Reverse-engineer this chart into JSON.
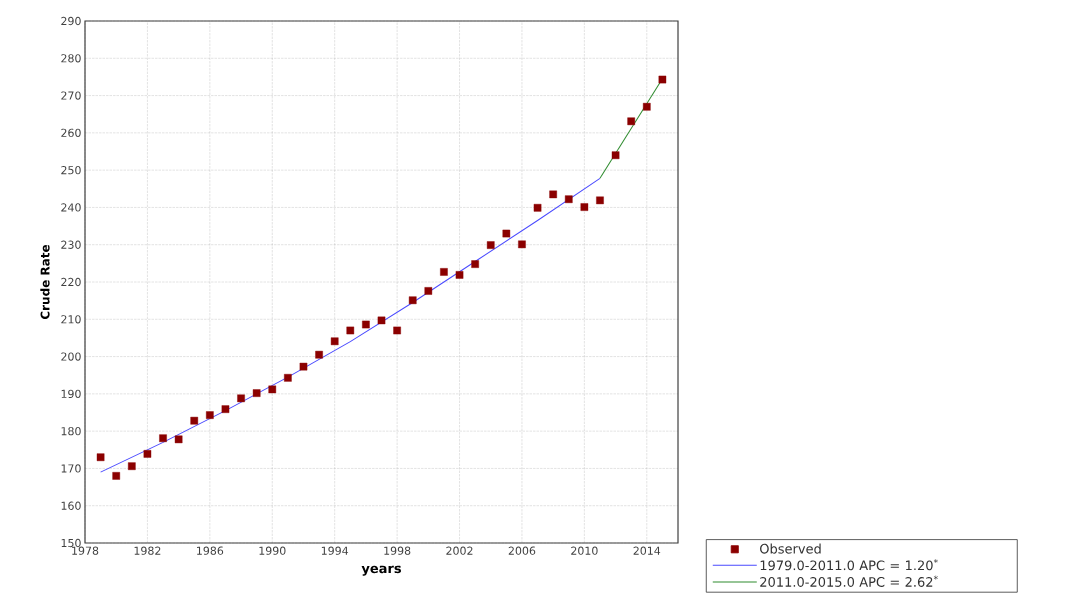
{
  "chart_data": {
    "type": "scatter",
    "xlabel": "years",
    "ylabel": "Crude Rate",
    "xlim": [
      1978,
      2016
    ],
    "xticks": [
      1978,
      1982,
      1986,
      1990,
      1994,
      1998,
      2002,
      2006,
      2010,
      2014
    ],
    "ylim": [
      150,
      290
    ],
    "yticks": [
      150,
      160,
      170,
      180,
      190,
      200,
      210,
      220,
      230,
      240,
      250,
      260,
      270,
      280,
      290
    ],
    "grid": true,
    "legend": "bottom right",
    "series": [
      {
        "name": "Observed",
        "marker": "square",
        "color": "#8b0000",
        "x": [
          1979,
          1980,
          1981,
          1982,
          1983,
          1984,
          1985,
          1986,
          1987,
          1988,
          1989,
          1990,
          1991,
          1992,
          1993,
          1994,
          1995,
          1996,
          1997,
          1998,
          1999,
          2000,
          2001,
          2002,
          2003,
          2004,
          2005,
          2006,
          2007,
          2008,
          2009,
          2010,
          2011,
          2012,
          2013,
          2014,
          2015
        ],
        "values": [
          173,
          168,
          170.6,
          173.9,
          178.1,
          177.8,
          182.8,
          184.3,
          185.9,
          188.8,
          190.2,
          191.2,
          194.3,
          197.3,
          200.5,
          204.1,
          207,
          208.6,
          209.7,
          207,
          215.1,
          217.6,
          222.7,
          221.9,
          224.8,
          229.9,
          233,
          230.1,
          239.9,
          243.5,
          242.2,
          240.1,
          241.9,
          254,
          263.1,
          267,
          274.3
        ]
      },
      {
        "name": "1979.0-2011.0 APC  = 1.20$^{*}$",
        "type": "line",
        "line_style": "solid",
        "color": "#4a4aff",
        "x": [
          1979,
          1983,
          1987,
          1991,
          1995,
          1999,
          2003,
          2007,
          2011
        ],
        "values": [
          169,
          177,
          185.5,
          194.5,
          204,
          214.5,
          225.5,
          236.5,
          247.8
        ]
      },
      {
        "name": "2011.0-2015.0 APC  = 2.62$^{*}$",
        "type": "line",
        "line_style": "solid",
        "color": "#2e8b2e",
        "x": [
          2011,
          2015
        ],
        "values": [
          247.8,
          274.5
        ]
      }
    ]
  }
}
